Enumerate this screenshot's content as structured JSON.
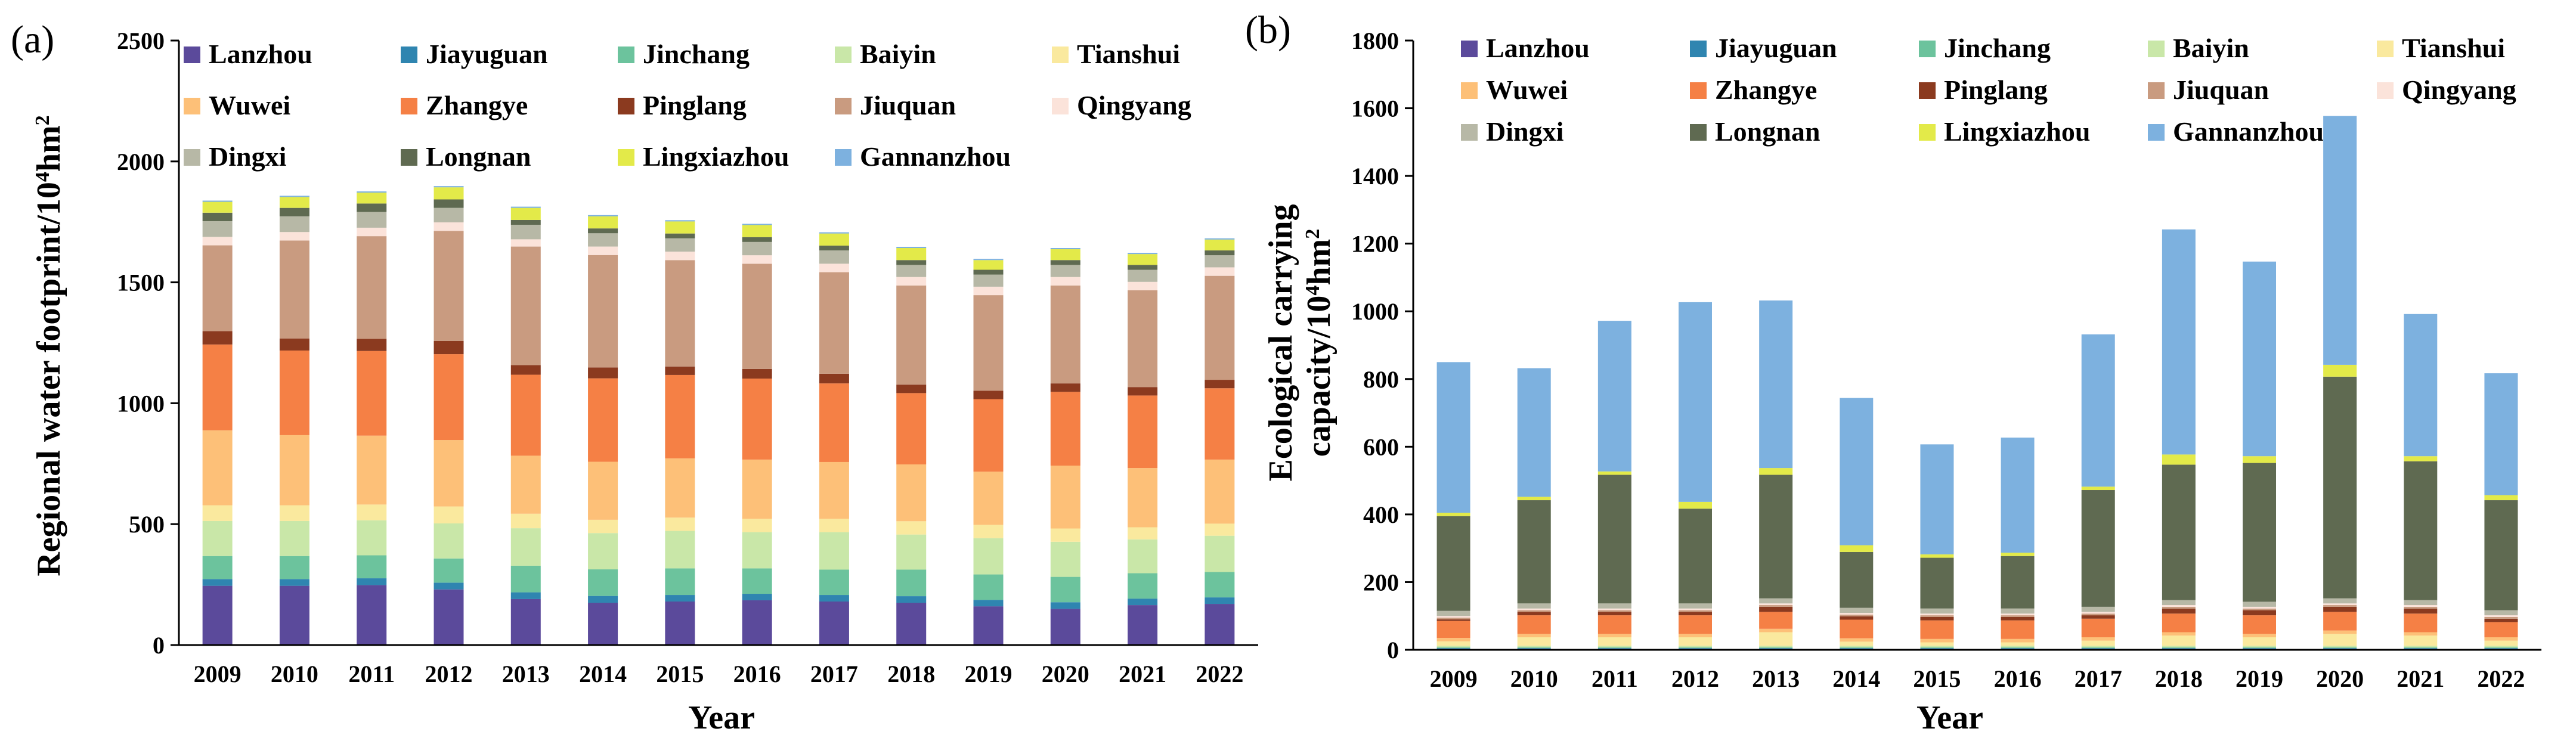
{
  "chart_data": [
    {
      "type": "bar",
      "stacked": true,
      "panel_label": "(a)",
      "title": "",
      "xlabel": "Year",
      "ylabel": "Regional water footprint/10⁴hm²",
      "ylabel_parts": [
        "Regional water footprint/10",
        "4",
        "hm",
        "2"
      ],
      "ylim": [
        0,
        2500
      ],
      "yticks": [
        0,
        500,
        1000,
        1500,
        2000,
        2500
      ],
      "categories": [
        "2009",
        "2010",
        "2011",
        "2012",
        "2013",
        "2014",
        "2015",
        "2016",
        "2017",
        "2018",
        "2019",
        "2020",
        "2021",
        "2022"
      ],
      "legend_position": "top-left",
      "series": [
        {
          "name": "Lanzhou",
          "color": "#5b4a9b",
          "values": [
            245,
            245,
            248,
            230,
            190,
            175,
            180,
            185,
            180,
            175,
            160,
            150,
            165,
            170
          ]
        },
        {
          "name": "Jiayuguan",
          "color": "#2f85b0",
          "values": [
            28,
            28,
            28,
            28,
            28,
            28,
            27,
            27,
            27,
            27,
            27,
            27,
            27,
            27
          ]
        },
        {
          "name": "Jinchang",
          "color": "#6cc39d",
          "values": [
            95,
            95,
            95,
            100,
            110,
            110,
            110,
            105,
            105,
            110,
            105,
            105,
            105,
            105
          ]
        },
        {
          "name": "Baiyin",
          "color": "#c9e7a8",
          "values": [
            145,
            145,
            145,
            145,
            155,
            150,
            155,
            150,
            155,
            145,
            150,
            145,
            140,
            150
          ]
        },
        {
          "name": "Tianshui",
          "color": "#fae99e",
          "values": [
            65,
            65,
            65,
            70,
            60,
            55,
            55,
            55,
            55,
            55,
            55,
            55,
            50,
            50
          ]
        },
        {
          "name": "Wuwei",
          "color": "#fdc078",
          "values": [
            310,
            290,
            285,
            275,
            240,
            240,
            245,
            245,
            235,
            235,
            220,
            260,
            245,
            265
          ]
        },
        {
          "name": "Zhangye",
          "color": "#f58045",
          "values": [
            355,
            350,
            350,
            355,
            335,
            345,
            345,
            335,
            325,
            295,
            300,
            305,
            300,
            295
          ]
        },
        {
          "name": "Pinglang",
          "color": "#8b3a1f",
          "values": [
            55,
            50,
            50,
            55,
            40,
            45,
            35,
            40,
            40,
            35,
            35,
            35,
            35,
            35
          ]
        },
        {
          "name": "Jiuquan",
          "color": "#c99b80",
          "values": [
            355,
            405,
            425,
            455,
            490,
            465,
            440,
            435,
            420,
            410,
            395,
            405,
            400,
            430
          ]
        },
        {
          "name": "Qingyang",
          "color": "#fbe3da",
          "values": [
            35,
            35,
            35,
            35,
            30,
            35,
            35,
            35,
            35,
            35,
            35,
            35,
            35,
            35
          ]
        },
        {
          "name": "Dingxi",
          "color": "#b7b8a6",
          "values": [
            65,
            65,
            65,
            60,
            60,
            55,
            55,
            55,
            55,
            50,
            50,
            50,
            50,
            50
          ]
        },
        {
          "name": "Longnan",
          "color": "#5f6a51",
          "values": [
            35,
            35,
            35,
            35,
            20,
            20,
            20,
            20,
            20,
            20,
            20,
            20,
            20,
            20
          ]
        },
        {
          "name": "Lingxiazhou",
          "color": "#e3ea49",
          "values": [
            45,
            45,
            45,
            50,
            50,
            50,
            50,
            50,
            50,
            50,
            40,
            45,
            45,
            45
          ]
        },
        {
          "name": "Gannanzhou",
          "color": "#7db1df",
          "values": [
            5,
            5,
            5,
            5,
            5,
            5,
            5,
            5,
            5,
            5,
            5,
            5,
            5,
            5
          ]
        }
      ]
    },
    {
      "type": "bar",
      "stacked": true,
      "panel_label": "(b)",
      "title": "",
      "xlabel": "Year",
      "ylabel": "Ecological carrying capacity/10⁴hm²",
      "ylabel_line1": "Ecological carrying",
      "ylabel_parts": [
        "capacity/10",
        "4",
        "hm",
        "2"
      ],
      "ylim": [
        0,
        1800
      ],
      "yticks": [
        0,
        200,
        400,
        600,
        800,
        1000,
        1200,
        1400,
        1600,
        1800
      ],
      "categories": [
        "2009",
        "2010",
        "2011",
        "2012",
        "2013",
        "2014",
        "2015",
        "2016",
        "2017",
        "2018",
        "2019",
        "2020",
        "2021",
        "2022"
      ],
      "legend_position": "top-left",
      "series": [
        {
          "name": "Lanzhou",
          "color": "#5b4a9b",
          "values": [
            3,
            3,
            3,
            3,
            3,
            3,
            3,
            3,
            3,
            3,
            3,
            3,
            3,
            3
          ]
        },
        {
          "name": "Jiayuguan",
          "color": "#2f85b0",
          "values": [
            2,
            2,
            2,
            2,
            2,
            2,
            2,
            2,
            2,
            2,
            2,
            2,
            2,
            2
          ]
        },
        {
          "name": "Jinchang",
          "color": "#6cc39d",
          "values": [
            2,
            2,
            2,
            2,
            2,
            2,
            2,
            2,
            2,
            2,
            2,
            2,
            2,
            2
          ]
        },
        {
          "name": "Baiyin",
          "color": "#c9e7a8",
          "values": [
            5,
            5,
            5,
            5,
            5,
            5,
            5,
            5,
            5,
            5,
            5,
            5,
            5,
            5
          ]
        },
        {
          "name": "Tianshui",
          "color": "#fae99e",
          "values": [
            13,
            25,
            25,
            25,
            40,
            12,
            10,
            10,
            15,
            30,
            25,
            35,
            30,
            15
          ]
        },
        {
          "name": "Wuwei",
          "color": "#fdc078",
          "values": [
            10,
            10,
            10,
            10,
            10,
            10,
            10,
            10,
            10,
            10,
            10,
            10,
            10,
            10
          ]
        },
        {
          "name": "Zhangye",
          "color": "#f58045",
          "values": [
            50,
            55,
            55,
            55,
            50,
            55,
            55,
            55,
            55,
            55,
            55,
            55,
            55,
            45
          ]
        },
        {
          "name": "Pinglang",
          "color": "#8b3a1f",
          "values": [
            5,
            10,
            10,
            10,
            15,
            10,
            10,
            10,
            10,
            15,
            15,
            15,
            15,
            10
          ]
        },
        {
          "name": "Jiuquan",
          "color": "#c99b80",
          "values": [
            5,
            5,
            5,
            5,
            5,
            5,
            5,
            5,
            5,
            5,
            5,
            5,
            5,
            5
          ]
        },
        {
          "name": "Qingyang",
          "color": "#fbe3da",
          "values": [
            5,
            5,
            5,
            5,
            5,
            5,
            5,
            5,
            5,
            5,
            5,
            5,
            5,
            5
          ]
        },
        {
          "name": "Dingxi",
          "color": "#b7b8a6",
          "values": [
            15,
            15,
            15,
            15,
            15,
            15,
            15,
            15,
            15,
            15,
            15,
            15,
            15,
            15
          ]
        },
        {
          "name": "Longnan",
          "color": "#5f6a51",
          "values": [
            280,
            305,
            380,
            280,
            365,
            165,
            150,
            155,
            345,
            400,
            410,
            655,
            410,
            325
          ]
        },
        {
          "name": "Lingxiazhou",
          "color": "#e3ea49",
          "values": [
            10,
            10,
            10,
            20,
            20,
            20,
            10,
            10,
            10,
            30,
            20,
            35,
            15,
            15
          ]
        },
        {
          "name": "Gannanzhou",
          "color": "#7db1df",
          "values": [
            445,
            380,
            445,
            590,
            495,
            435,
            325,
            340,
            450,
            665,
            575,
            735,
            420,
            360
          ]
        }
      ]
    }
  ]
}
